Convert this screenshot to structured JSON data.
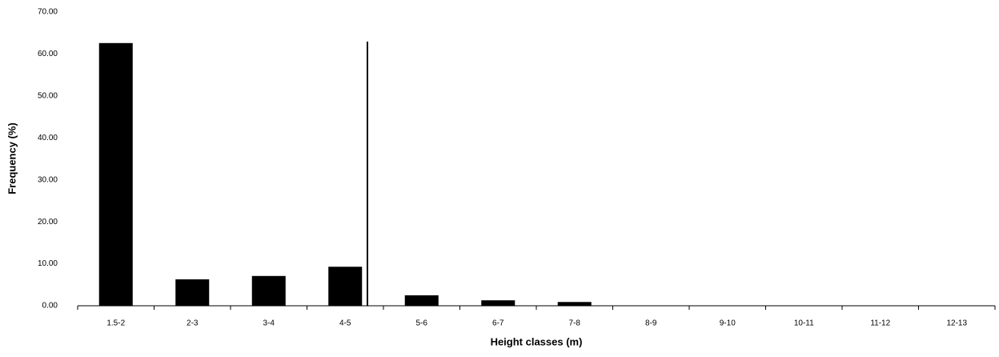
{
  "chart_data": {
    "type": "bar",
    "categories": [
      "1.5-2",
      "2-3",
      "3-4",
      "4-5",
      "5-6",
      "6-7",
      "7-8",
      "8-9",
      "9-10",
      "10-11",
      "11-12",
      "12-13"
    ],
    "values": [
      62.6,
      6.3,
      7.1,
      9.3,
      2.5,
      1.3,
      0.9,
      0,
      0,
      0,
      0,
      0
    ],
    "color": "#000000",
    "ylim": [
      0,
      70
    ],
    "yticks": [
      {
        "value": 0,
        "label": "0.00"
      },
      {
        "value": 10,
        "label": "10.00"
      },
      {
        "value": 20,
        "label": "20.00"
      },
      {
        "value": 30,
        "label": "30.00"
      },
      {
        "value": 40,
        "label": "40.00"
      },
      {
        "value": 50,
        "label": "50.00"
      },
      {
        "value": 60,
        "label": "60.00"
      },
      {
        "value": 70,
        "label": "70.00"
      }
    ],
    "xlabel": "Height classes (m)",
    "ylabel": "Frequency (%)",
    "grid": false
  }
}
